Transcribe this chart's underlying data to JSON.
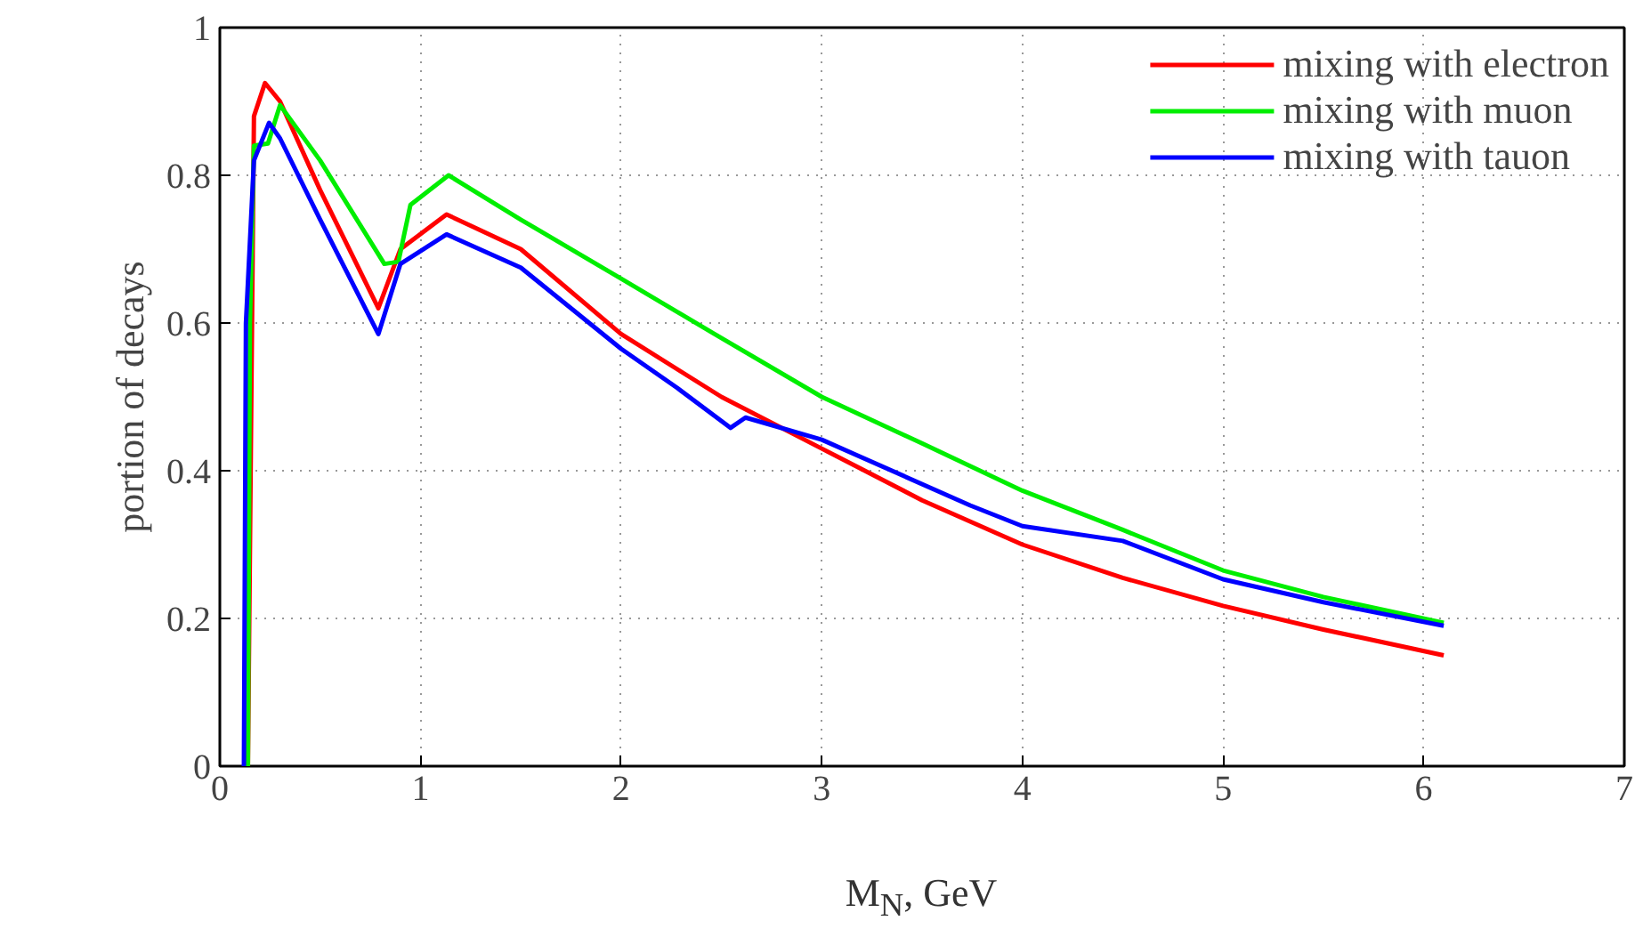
{
  "chart_data": {
    "type": "line",
    "xlabel": "M$_{N}$, GeV",
    "ylabel": "portion of decays",
    "xlim": [
      0,
      7
    ],
    "ylim": [
      0,
      1
    ],
    "xticks": [
      0,
      1,
      2,
      3,
      4,
      5,
      6,
      7
    ],
    "yticks": [
      0,
      0.2,
      0.4,
      0.6,
      0.8,
      1
    ],
    "grid": true,
    "legend": "top right",
    "line_style": "solid",
    "series": [
      {
        "name": "mixing with electron",
        "color": "#ff0000",
        "x": [
          0.14,
          0.17,
          0.225,
          0.3,
          0.5,
          0.79,
          0.9,
          1.13,
          1.5,
          2,
          2.5,
          3,
          3.5,
          4,
          4.5,
          5,
          5.5,
          6.1
        ],
        "values": [
          0,
          0.88,
          0.925,
          0.9,
          0.78,
          0.62,
          0.7,
          0.747,
          0.7,
          0.585,
          0.5,
          0.43,
          0.36,
          0.3,
          0.255,
          0.217,
          0.185,
          0.15
        ]
      },
      {
        "name": "mixing with muon",
        "color": "#00ee00",
        "x": [
          0.14,
          0.15,
          0.17,
          0.24,
          0.3,
          0.5,
          0.82,
          0.89,
          0.95,
          1.14,
          1.5,
          2,
          2.46,
          3,
          3.5,
          4,
          4.5,
          5,
          5.5,
          6.1
        ],
        "values": [
          0,
          0.6,
          0.84,
          0.843,
          0.895,
          0.82,
          0.68,
          0.683,
          0.76,
          0.8,
          0.74,
          0.66,
          0.586,
          0.5,
          0.437,
          0.373,
          0.32,
          0.265,
          0.229,
          0.194
        ]
      },
      {
        "name": "mixing with tauon",
        "color": "#0000ff",
        "x": [
          0.12,
          0.13,
          0.17,
          0.245,
          0.3,
          0.5,
          0.79,
          0.9,
          1.13,
          1.5,
          2,
          2.28,
          2.545,
          2.62,
          3,
          3.74,
          4,
          4.5,
          5,
          5.5,
          6.1
        ],
        "values": [
          0,
          0.6,
          0.82,
          0.871,
          0.85,
          0.74,
          0.585,
          0.68,
          0.72,
          0.675,
          0.565,
          0.512,
          0.458,
          0.472,
          0.442,
          0.353,
          0.325,
          0.305,
          0.253,
          0.222,
          0.19
        ]
      }
    ]
  }
}
